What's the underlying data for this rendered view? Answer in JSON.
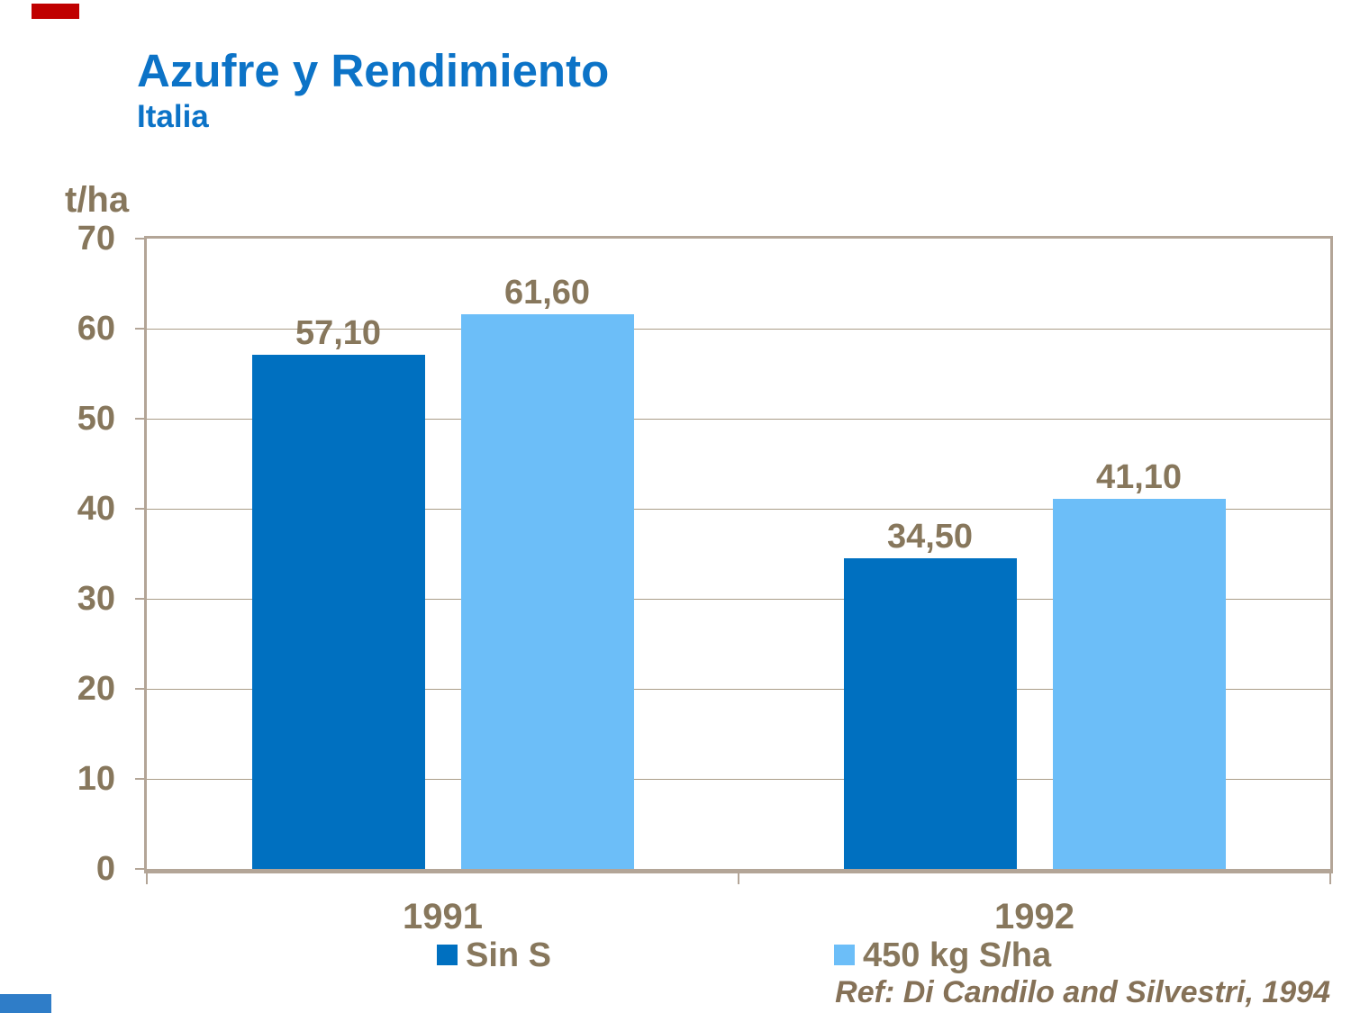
{
  "header": {
    "title": "Azufre y Rendimiento",
    "subtitle": "Italia",
    "title_color": "#0C73C7"
  },
  "decorations": {
    "top_left_bar_color": "#C00000",
    "bottom_left_bar_color": "#2F7DC8"
  },
  "chart_data": {
    "type": "bar",
    "title": "Azufre y Rendimiento",
    "subtitle": "Italia",
    "unit_label": "t/ha",
    "categories": [
      "1991",
      "1992"
    ],
    "series": [
      {
        "name": "Sin S",
        "color": "#0070C0",
        "values": [
          57.1,
          34.5
        ],
        "value_labels": [
          "57,10",
          "34,50"
        ]
      },
      {
        "name": "450 kg S/ha",
        "color": "#6CBEF8",
        "values": [
          61.6,
          41.1
        ],
        "value_labels": [
          "61,60",
          "41,10"
        ]
      }
    ],
    "ylim": [
      0,
      70
    ],
    "ytick_step": 10,
    "ytick_labels": [
      "70",
      "60",
      "50",
      "40",
      "30",
      "20",
      "10",
      "0"
    ],
    "grid": true,
    "legend_position": "bottom",
    "styles": {
      "text_color": "#87775C",
      "grid_color": "#AA9D88",
      "frame_color": "#B3A597"
    }
  },
  "footer": {
    "reference": "Ref: Di Candilo and Silvestri, 1994"
  }
}
